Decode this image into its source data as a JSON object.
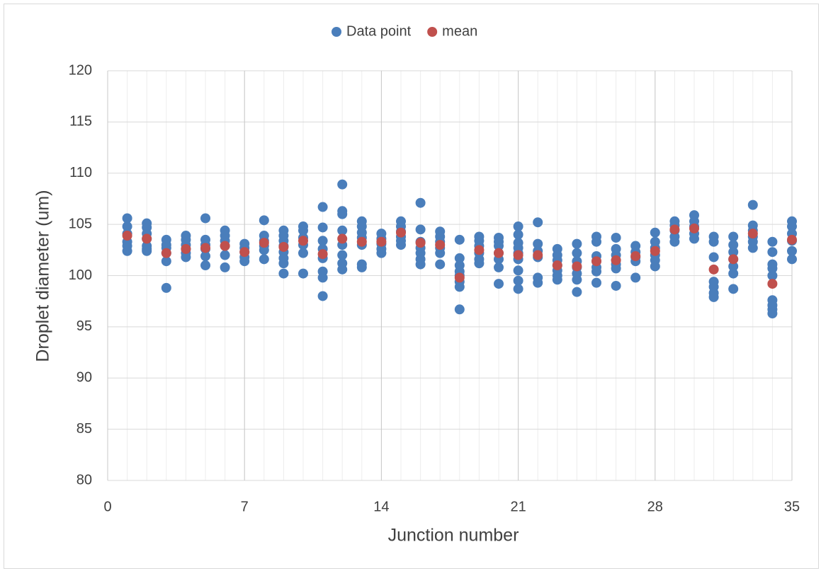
{
  "chart_data": {
    "type": "scatter",
    "x_label": "Junction number",
    "y_label": "Droplet diameter (um)",
    "legend": "top",
    "grid": true,
    "minor_x_grid": true,
    "xlim": [
      0,
      35
    ],
    "xticks": [
      0,
      7,
      14,
      21,
      28,
      35
    ],
    "ylim": [
      80,
      120
    ],
    "yticks": [
      80,
      85,
      90,
      95,
      100,
      105,
      110,
      115,
      120
    ],
    "series": [
      {
        "name": "Data point",
        "color": "#4a7ebb",
        "x": [
          1,
          1,
          1,
          1,
          1,
          1,
          2,
          2,
          2,
          2,
          2,
          2,
          2,
          3,
          3,
          3,
          3,
          3,
          3,
          4,
          4,
          4,
          4,
          4,
          4,
          5,
          5,
          5,
          5,
          5,
          5,
          6,
          6,
          6,
          6,
          6,
          6,
          7,
          7,
          7,
          7,
          7,
          8,
          8,
          8,
          8,
          8,
          8,
          9,
          9,
          9,
          9,
          9,
          9,
          9,
          9,
          10,
          10,
          10,
          10,
          10,
          10,
          11,
          11,
          11,
          11,
          11,
          11,
          11,
          11,
          12,
          12,
          12,
          12,
          12,
          12,
          12,
          12,
          13,
          13,
          13,
          13,
          13,
          13,
          13,
          14,
          14,
          14,
          14,
          14,
          15,
          15,
          15,
          15,
          15,
          15,
          16,
          16,
          16,
          16,
          16,
          16,
          16,
          17,
          17,
          17,
          17,
          17,
          17,
          18,
          18,
          18,
          18,
          18,
          18,
          18,
          18,
          19,
          19,
          19,
          19,
          19,
          19,
          20,
          20,
          20,
          20,
          20,
          20,
          20,
          21,
          21,
          21,
          21,
          21,
          21,
          21,
          21,
          21,
          22,
          22,
          22,
          22,
          22,
          22,
          23,
          23,
          23,
          23,
          23,
          23,
          23,
          24,
          24,
          24,
          24,
          24,
          24,
          24,
          25,
          25,
          25,
          25,
          25,
          25,
          25,
          26,
          26,
          26,
          26,
          26,
          26,
          26,
          27,
          27,
          27,
          27,
          27,
          28,
          28,
          28,
          28,
          28,
          28,
          29,
          29,
          29,
          29,
          29,
          30,
          30,
          30,
          30,
          30,
          31,
          31,
          31,
          31,
          31,
          31,
          31,
          32,
          32,
          32,
          32,
          32,
          32,
          32,
          33,
          33,
          33,
          33,
          33,
          33,
          34,
          34,
          34,
          34,
          34,
          34,
          34,
          34,
          34,
          35,
          35,
          35,
          35,
          35,
          35
        ],
        "values": [
          105.6,
          104.8,
          104.1,
          103.3,
          102.9,
          102.4,
          105.1,
          104.7,
          104.1,
          103.6,
          102.9,
          102.6,
          102.4,
          103.5,
          103.0,
          102.7,
          102.2,
          101.4,
          98.8,
          103.9,
          103.5,
          103.0,
          102.6,
          102.2,
          101.8,
          105.6,
          103.5,
          103.0,
          102.6,
          101.9,
          101.0,
          104.4,
          103.9,
          103.4,
          102.9,
          102.0,
          100.8,
          103.1,
          102.7,
          102.3,
          101.8,
          101.4,
          105.4,
          103.9,
          103.4,
          102.9,
          102.5,
          101.6,
          104.4,
          103.9,
          103.4,
          102.9,
          102.3,
          101.7,
          101.2,
          100.2,
          104.8,
          104.4,
          103.7,
          103.0,
          102.2,
          100.2,
          106.7,
          104.7,
          103.4,
          102.6,
          101.7,
          100.4,
          99.8,
          98.0,
          108.9,
          106.3,
          106.0,
          104.4,
          103.0,
          102.0,
          101.2,
          100.6,
          105.3,
          104.8,
          104.2,
          103.7,
          103.0,
          101.1,
          100.8,
          104.1,
          103.6,
          103.1,
          102.6,
          102.2,
          105.3,
          104.8,
          104.3,
          103.8,
          103.4,
          103.0,
          107.1,
          104.5,
          103.3,
          102.7,
          102.2,
          101.6,
          101.1,
          104.3,
          103.8,
          103.3,
          102.7,
          102.2,
          101.1,
          103.5,
          101.7,
          101.0,
          100.4,
          100.0,
          99.4,
          98.9,
          96.7,
          103.8,
          103.4,
          102.9,
          102.2,
          101.6,
          101.2,
          103.7,
          103.3,
          102.9,
          102.2,
          101.6,
          100.8,
          99.2,
          104.8,
          104.0,
          103.2,
          102.7,
          102.2,
          101.6,
          100.5,
          99.5,
          98.7,
          105.2,
          103.1,
          102.4,
          101.8,
          99.8,
          99.3,
          102.6,
          102.0,
          101.5,
          101.0,
          100.5,
          100.0,
          99.6,
          103.1,
          102.2,
          101.4,
          100.8,
          100.2,
          99.6,
          98.4,
          103.8,
          103.3,
          101.9,
          101.4,
          100.8,
          100.4,
          99.3,
          103.7,
          102.6,
          102.0,
          101.5,
          101.1,
          100.7,
          99.0,
          102.9,
          102.3,
          101.8,
          101.4,
          99.8,
          104.2,
          103.3,
          102.7,
          102.0,
          101.5,
          100.9,
          105.3,
          104.9,
          104.4,
          103.8,
          103.3,
          105.9,
          105.3,
          104.8,
          104.1,
          103.6,
          103.8,
          103.3,
          101.8,
          99.4,
          98.9,
          98.3,
          97.9,
          103.8,
          103.0,
          102.3,
          101.6,
          100.9,
          100.2,
          98.7,
          106.9,
          104.9,
          104.4,
          103.8,
          103.3,
          102.7,
          103.3,
          102.3,
          101.1,
          100.7,
          100.0,
          97.6,
          97.1,
          96.7,
          96.3,
          105.3,
          104.8,
          104.1,
          103.4,
          102.4,
          101.6
        ]
      },
      {
        "name": "mean",
        "color": "#c0504d",
        "x": [
          1,
          2,
          3,
          4,
          5,
          6,
          7,
          8,
          9,
          10,
          11,
          12,
          13,
          14,
          15,
          16,
          17,
          18,
          19,
          20,
          21,
          22,
          23,
          24,
          25,
          26,
          27,
          28,
          29,
          30,
          31,
          32,
          33,
          34,
          35
        ],
        "values": [
          103.9,
          103.6,
          102.2,
          102.6,
          102.7,
          102.9,
          102.3,
          103.2,
          102.8,
          103.4,
          102.1,
          103.6,
          103.3,
          103.3,
          104.2,
          103.2,
          103.0,
          99.8,
          102.5,
          102.2,
          102.0,
          102.0,
          101.0,
          100.9,
          101.4,
          101.5,
          101.9,
          102.4,
          104.5,
          104.6,
          100.6,
          101.6,
          104.1,
          99.2,
          103.5
        ]
      }
    ]
  }
}
